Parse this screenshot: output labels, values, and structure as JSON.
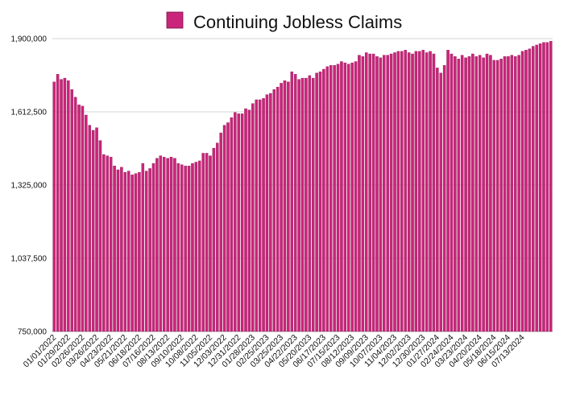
{
  "chart_data": {
    "type": "bar",
    "title": "Continuing Jobless Claims",
    "legend": [
      "Continuing Jobless Claims"
    ],
    "legend_position": "top-center",
    "xlabel": "",
    "ylabel": "",
    "ylim": [
      750000,
      1900000
    ],
    "yticks": [
      750000,
      1037500,
      1325000,
      1612500,
      1900000
    ],
    "ytick_labels": [
      "750,000",
      "1,037,500",
      "1,325,000",
      "1,612,500",
      "1,900,000"
    ],
    "grid": true,
    "color": "#c9257a",
    "start_date": "01/01/2022",
    "interval_days": 7,
    "x_tick_labels": [
      "01/01/2022",
      "01/29/2022",
      "02/26/2022",
      "03/26/2022",
      "04/23/2022",
      "05/21/2022",
      "06/18/2022",
      "07/16/2022",
      "08/13/2022",
      "09/10/2022",
      "10/08/2022",
      "11/05/2022",
      "12/03/2022",
      "12/31/2022",
      "01/28/2023",
      "02/25/2023",
      "03/25/2023",
      "04/22/2023",
      "05/20/2023",
      "06/17/2023",
      "07/15/2023",
      "08/12/2023",
      "09/09/2023",
      "10/07/2023",
      "11/04/2023",
      "12/02/2023",
      "12/30/2023",
      "01/27/2024",
      "02/24/2024",
      "03/23/2024",
      "04/20/2024",
      "05/18/2024",
      "06/15/2024",
      "07/13/2024"
    ],
    "values": [
      1730000,
      1760000,
      1740000,
      1745000,
      1735000,
      1700000,
      1670000,
      1640000,
      1635000,
      1600000,
      1560000,
      1540000,
      1550000,
      1500000,
      1445000,
      1440000,
      1435000,
      1400000,
      1385000,
      1395000,
      1375000,
      1380000,
      1365000,
      1370000,
      1375000,
      1410000,
      1380000,
      1390000,
      1410000,
      1430000,
      1440000,
      1435000,
      1430000,
      1435000,
      1430000,
      1410000,
      1405000,
      1400000,
      1400000,
      1410000,
      1415000,
      1420000,
      1450000,
      1450000,
      1440000,
      1470000,
      1490000,
      1530000,
      1560000,
      1570000,
      1590000,
      1610000,
      1605000,
      1605000,
      1625000,
      1620000,
      1645000,
      1660000,
      1660000,
      1665000,
      1680000,
      1685000,
      1700000,
      1710000,
      1725000,
      1735000,
      1730000,
      1770000,
      1760000,
      1740000,
      1745000,
      1745000,
      1755000,
      1745000,
      1765000,
      1770000,
      1780000,
      1790000,
      1795000,
      1795000,
      1800000,
      1810000,
      1805000,
      1800000,
      1805000,
      1810000,
      1835000,
      1830000,
      1845000,
      1840000,
      1840000,
      1830000,
      1825000,
      1835000,
      1835000,
      1840000,
      1845000,
      1850000,
      1850000,
      1855000,
      1845000,
      1840000,
      1850000,
      1850000,
      1855000,
      1845000,
      1850000,
      1840000,
      1785000,
      1765000,
      1795000,
      1855000,
      1840000,
      1830000,
      1820000,
      1835000,
      1825000,
      1830000,
      1840000,
      1830000,
      1835000,
      1825000,
      1840000,
      1835000,
      1815000,
      1815000,
      1820000,
      1830000,
      1830000,
      1835000,
      1830000,
      1835000,
      1850000,
      1855000,
      1860000,
      1870000,
      1875000,
      1880000,
      1885000,
      1885000,
      1890000
    ]
  }
}
